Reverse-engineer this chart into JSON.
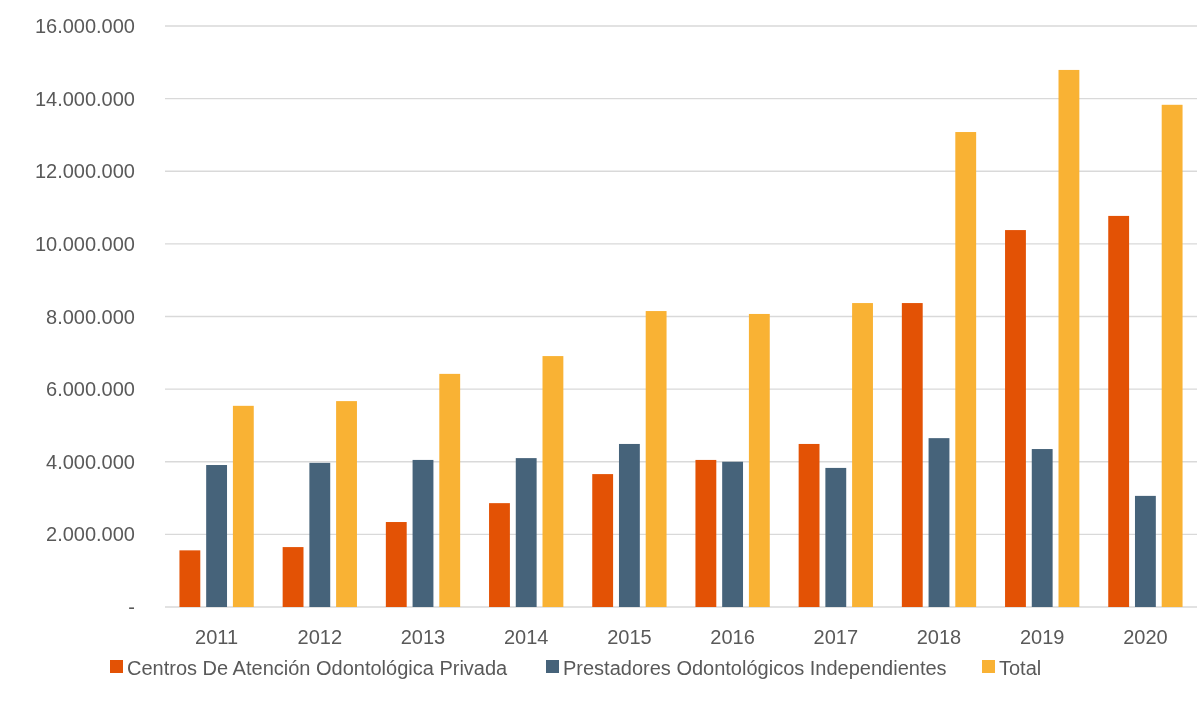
{
  "chart_data": {
    "type": "bar",
    "categories": [
      "2011",
      "2012",
      "2013",
      "2014",
      "2015",
      "2016",
      "2017",
      "2018",
      "2019",
      "2020"
    ],
    "series": [
      {
        "name": "Centros De Atención Odontológica Privada",
        "color": "#e35205",
        "values": [
          1560000,
          1650000,
          2340000,
          2860000,
          3660000,
          4050000,
          4490000,
          8370000,
          10380000,
          10770000
        ]
      },
      {
        "name": "Prestadores Odontológicos Independientes",
        "color": "#46637a",
        "values": [
          3910000,
          3970000,
          4050000,
          4100000,
          4490000,
          4000000,
          3830000,
          4650000,
          4350000,
          3060000
        ]
      },
      {
        "name": "Total",
        "color": "#f9b234",
        "values": [
          5540000,
          5670000,
          6420000,
          6910000,
          8150000,
          8070000,
          8370000,
          13080000,
          14790000,
          13830000
        ]
      }
    ],
    "ylim": [
      0,
      16000000
    ],
    "yticks": [
      {
        "value": 0,
        "label": "-"
      },
      {
        "value": 2000000,
        "label": "2.000.000"
      },
      {
        "value": 4000000,
        "label": "4.000.000"
      },
      {
        "value": 6000000,
        "label": "6.000.000"
      },
      {
        "value": 8000000,
        "label": "8.000.000"
      },
      {
        "value": 10000000,
        "label": "10.000.000"
      },
      {
        "value": 12000000,
        "label": "12.000.000"
      },
      {
        "value": 14000000,
        "label": "14.000.000"
      },
      {
        "value": 16000000,
        "label": "16.000.000"
      }
    ],
    "grid": "y",
    "legend": "bottom"
  }
}
